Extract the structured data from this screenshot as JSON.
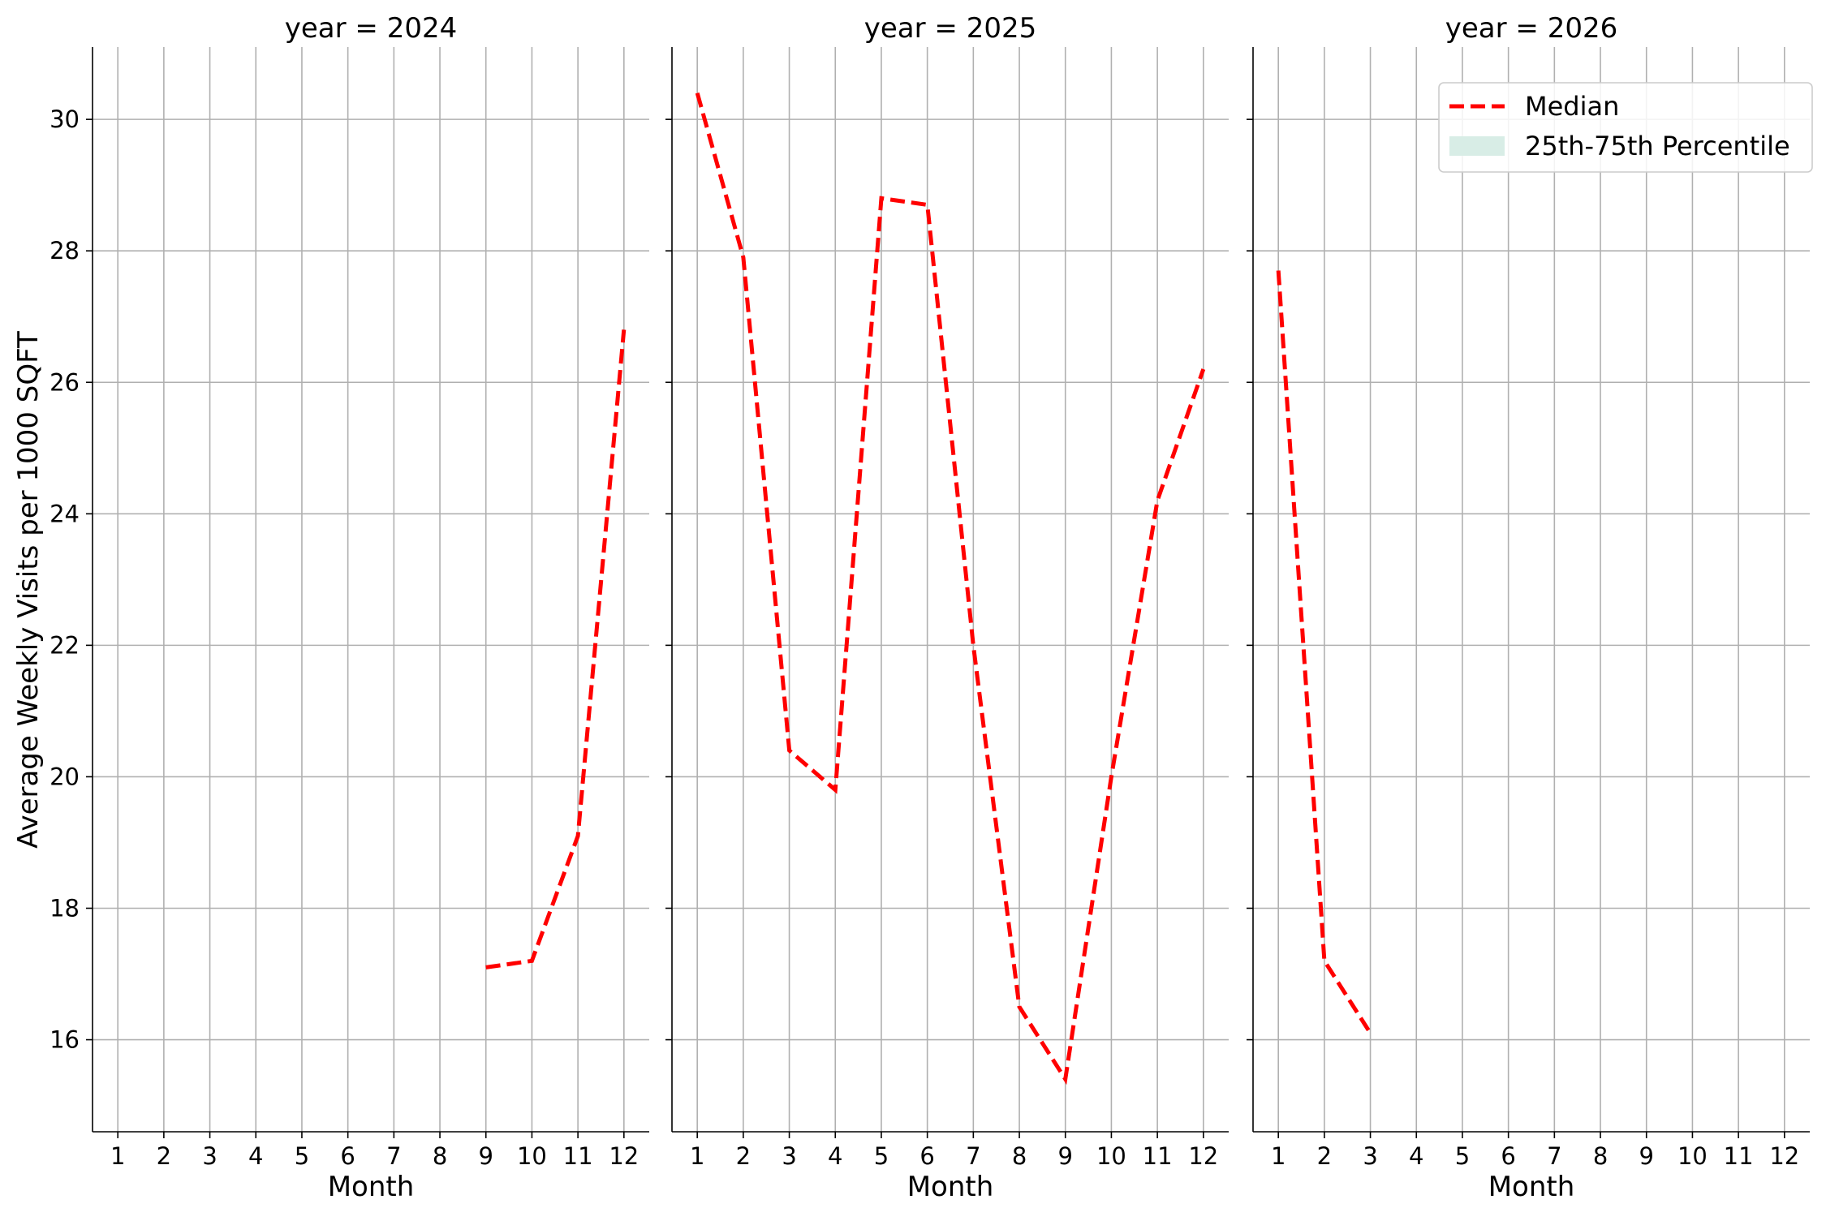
{
  "chart_data": {
    "type": "line",
    "ylabel": "Average Weekly Visits per 1000 SQFT",
    "xlabel": "Month",
    "ylim": [
      14.6,
      31.1
    ],
    "xlim": [
      0.45,
      12.55
    ],
    "x_ticks": [
      "1",
      "2",
      "3",
      "4",
      "5",
      "6",
      "7",
      "8",
      "9",
      "10",
      "11",
      "12"
    ],
    "y_ticks": [
      16,
      18,
      20,
      22,
      24,
      26,
      28,
      30
    ],
    "grid": true,
    "legend": {
      "placement": "top-right of last panel",
      "entries": [
        {
          "label": "Median",
          "style": "dashed-line",
          "color": "#ff0000"
        },
        {
          "label": "25th-75th Percentile",
          "style": "filled-patch",
          "color": "#d8ede6"
        }
      ]
    },
    "panels": [
      {
        "title": "year = 2024",
        "series": [
          {
            "name": "Median",
            "color": "#ff0000",
            "x": [
              9,
              10,
              11,
              12
            ],
            "y": [
              17.1,
              17.2,
              19.1,
              26.8
            ]
          }
        ]
      },
      {
        "title": "year = 2025",
        "series": [
          {
            "name": "Median",
            "color": "#ff0000",
            "x": [
              1,
              2,
              3,
              4,
              5,
              6,
              7,
              8,
              9,
              10,
              11,
              12
            ],
            "y": [
              30.4,
              27.9,
              20.4,
              19.8,
              28.8,
              28.7,
              22.0,
              16.5,
              15.4,
              20.0,
              24.2,
              26.2
            ]
          }
        ]
      },
      {
        "title": "year = 2026",
        "series": [
          {
            "name": "Median",
            "color": "#ff0000",
            "x": [
              1,
              2,
              3
            ],
            "y": [
              27.7,
              17.2,
              16.1
            ]
          }
        ]
      }
    ]
  }
}
